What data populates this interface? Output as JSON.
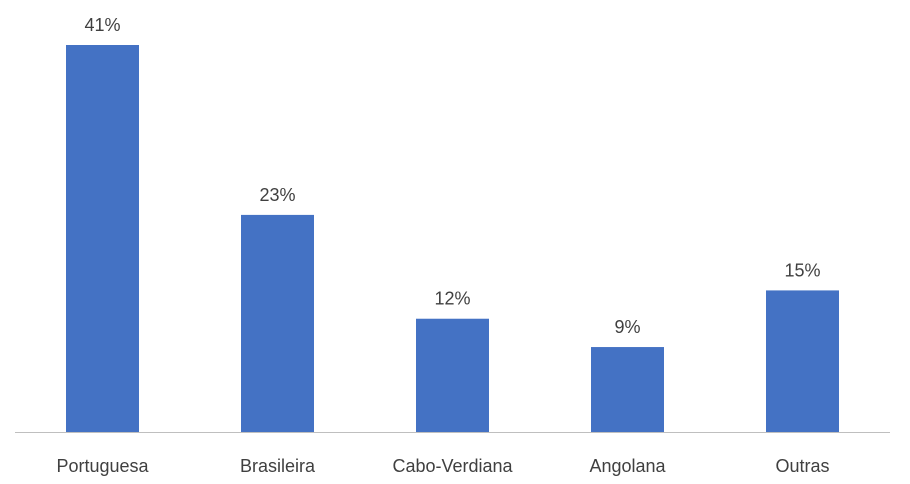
{
  "chart_data": {
    "type": "bar",
    "categories": [
      "Portuguesa",
      "Brasileira",
      "Cabo-Verdiana",
      "Angolana",
      "Outras"
    ],
    "values": [
      41,
      23,
      12,
      9,
      15
    ],
    "value_labels": [
      "41%",
      "23%",
      "12%",
      "9%",
      "15%"
    ],
    "title": "",
    "xlabel": "",
    "ylabel": "",
    "ylim": [
      0,
      41
    ],
    "grid": false,
    "legend": "none",
    "colors": {
      "bar": "#4472C4",
      "axis": "#BFBFBF",
      "text": "#404040"
    }
  }
}
